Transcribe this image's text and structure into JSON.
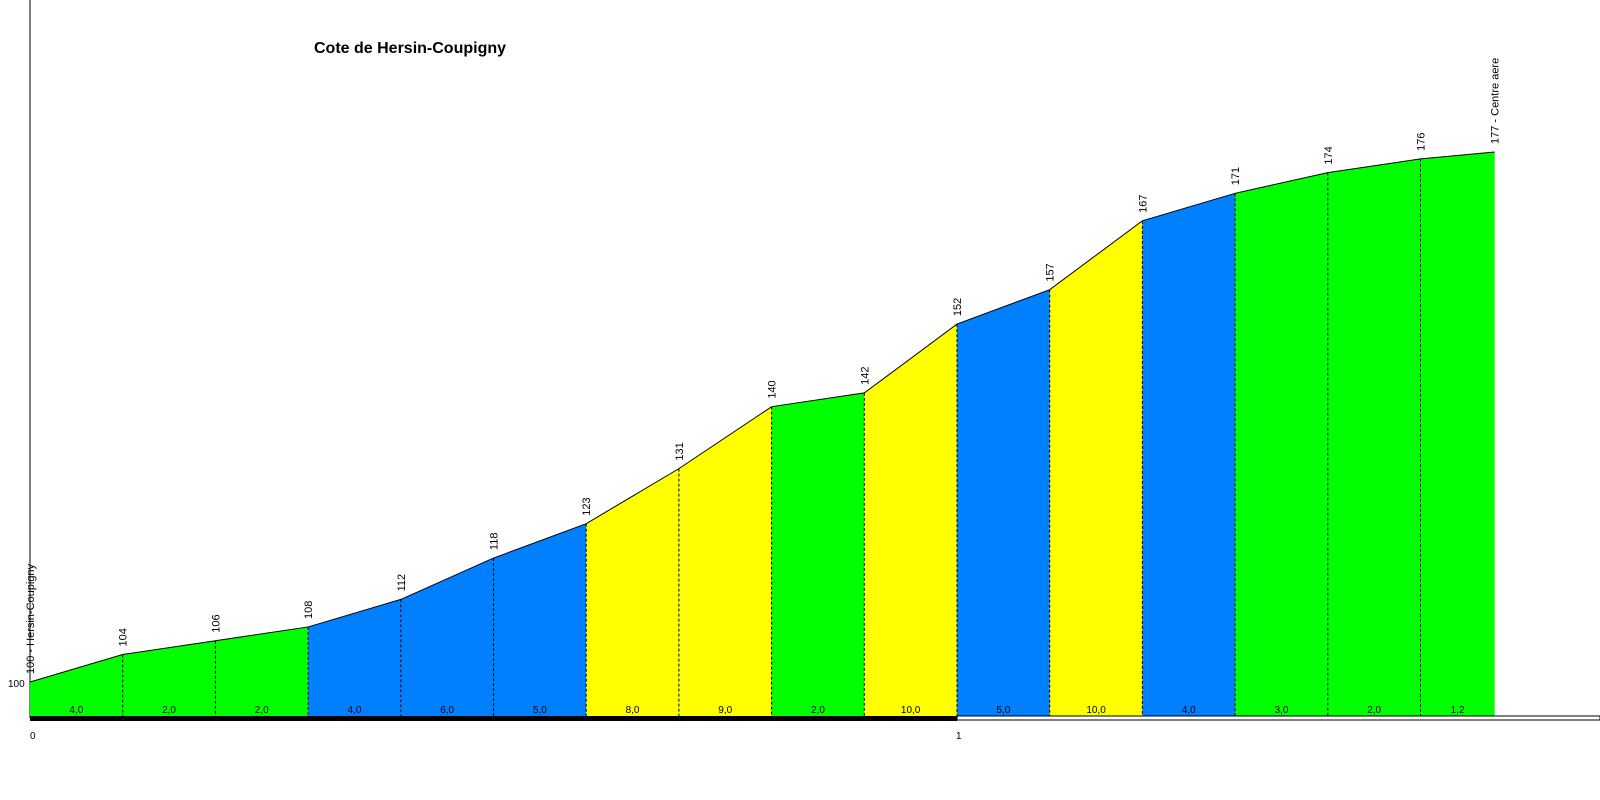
{
  "chart_data": {
    "type": "area",
    "title": "Cote de Hersin-Coupigny",
    "x_unit_step_km": 0.1,
    "elevations": [
      100,
      104,
      106,
      108,
      112,
      118,
      123,
      131,
      140,
      142,
      152,
      157,
      167,
      171,
      174,
      176,
      177
    ],
    "elevation_labels": [
      "100 - Hersin-Coupigny",
      "104",
      "106",
      "108",
      "112",
      "118",
      "123",
      "131",
      "140",
      "142",
      "152",
      "157",
      "167",
      "171",
      "174",
      "176",
      "177 - Centre aere"
    ],
    "x_km": [
      0,
      0.1,
      0.2,
      0.3,
      0.4,
      0.5,
      0.6,
      0.7,
      0.8,
      0.9,
      1.0,
      1.1,
      1.2,
      1.3,
      1.4,
      1.5,
      1.58
    ],
    "gradients": [
      "4,0",
      "2,0",
      "2,0",
      "4,0",
      "6,0",
      "5,0",
      "8,0",
      "9,0",
      "2,0",
      "10,0",
      "5,0",
      "10,0",
      "4,0",
      "3,0",
      "2,0",
      "1,2"
    ],
    "segment_colors": [
      "#00ff00",
      "#00ff00",
      "#00ff00",
      "#0080ff",
      "#0080ff",
      "#0080ff",
      "#ffff00",
      "#ffff00",
      "#00ff00",
      "#ffff00",
      "#0080ff",
      "#ffff00",
      "#0080ff",
      "#00ff00",
      "#00ff00",
      "#00ff00"
    ],
    "y_axis_label": "100",
    "x_ticks": [
      "0",
      "1"
    ],
    "ylim": [
      100,
      177
    ],
    "grid": false,
    "legend": "none"
  }
}
